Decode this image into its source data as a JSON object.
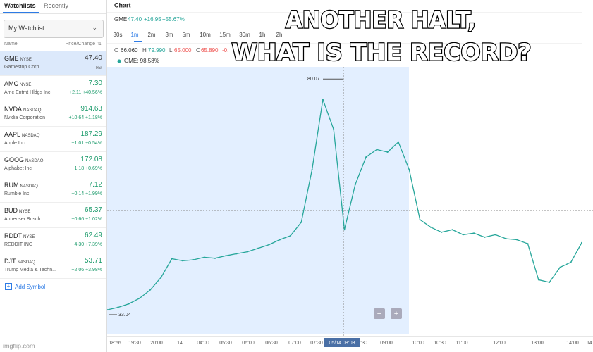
{
  "watchlist": {
    "tabs": [
      "Watchlists",
      "Recently"
    ],
    "dropdown": "My Watchlist",
    "columns": [
      "Name",
      "Price/Change"
    ],
    "rows": [
      {
        "symbol": "GME",
        "exchange": "NYSE",
        "company": "Gamestop Corp",
        "price": "47.40",
        "change": "Halt"
      },
      {
        "symbol": "AMC",
        "exchange": "NYSE",
        "company": "Amc Entmt Hldgs Inc",
        "price": "7.30",
        "change": "+2.11 +40.56%"
      },
      {
        "symbol": "NVDA",
        "exchange": "NASDAQ",
        "company": "Nvidia Corporation",
        "price": "914.63",
        "change": "+10.64 +1.18%"
      },
      {
        "symbol": "AAPL",
        "exchange": "NASDAQ",
        "company": "Apple Inc",
        "price": "187.29",
        "change": "+1.01 +0.54%"
      },
      {
        "symbol": "GOOG",
        "exchange": "NASDAQ",
        "company": "Alphabet Inc",
        "price": "172.08",
        "change": "+1.18 +0.69%"
      },
      {
        "symbol": "RUM",
        "exchange": "NASDAQ",
        "company": "Rumble Inc",
        "price": "7.12",
        "change": "+0.14 +1.99%"
      },
      {
        "symbol": "BUD",
        "exchange": "NYSE",
        "company": "Anheuser Busch",
        "price": "65.37",
        "change": "+0.66 +1.02%"
      },
      {
        "symbol": "RDDT",
        "exchange": "NYSE",
        "company": "REDDIT INC",
        "price": "62.49",
        "change": "+4.30 +7.39%"
      },
      {
        "symbol": "DJT",
        "exchange": "NASDAQ",
        "company": "Trump Media & Techn...",
        "price": "53.71",
        "change": "+2.06 +3.98%"
      }
    ],
    "add_symbol": "Add Symbol"
  },
  "chart_panel": {
    "title": "Chart",
    "quote": [
      "GME",
      "47.40",
      "+16.95",
      "+55.67%"
    ],
    "timeframes": [
      "30s",
      "1m",
      "2m",
      "3m",
      "5m",
      "10m",
      "15m",
      "30m",
      "1h",
      "2h"
    ],
    "ohlc": [
      "O",
      "66.060",
      "H",
      "79.990",
      "L",
      "65.000",
      "C",
      "65.890",
      "-0."
    ],
    "legend": "GME: 98.58%",
    "zoom": [
      "−",
      "+"
    ],
    "watermark": "imgflip.com"
  },
  "chart_data": {
    "type": "line",
    "color": "#26a69a",
    "values": [
      34.0,
      34.5,
      35.2,
      36.3,
      38.0,
      40.5,
      44.2,
      43.8,
      44.0,
      44.5,
      44.3,
      44.8,
      45.2,
      45.6,
      46.3,
      47.0,
      48.0,
      48.8,
      51.5,
      62.0,
      76.0,
      70.0,
      50.0,
      59.0,
      64.5,
      66.0,
      65.5,
      67.5,
      62.0,
      52.0,
      50.5,
      49.5,
      50.0,
      49.0,
      49.3,
      48.5,
      49.0,
      48.2,
      48.0,
      47.2,
      40.0,
      39.5,
      42.5,
      43.5,
      47.4
    ],
    "ylim": [
      29.8,
      82.5
    ],
    "max_label": {
      "value": 80.07,
      "label": "80.07"
    },
    "min_label": {
      "value": 33.04,
      "label": "33.04"
    },
    "x_labels": [
      "18:56",
      "19:30",
      "20:00",
      "14",
      "04:00",
      "05:30",
      "06:00",
      "06:30",
      "07:00",
      "07:30",
      "05/14 08:03",
      ":30",
      "09:00",
      "10:00",
      "10:30",
      "11:00",
      "12:00",
      "13:00",
      "14:00",
      "14"
    ]
  },
  "caption": [
    "ANOTHER HALT,",
    "WHAT IS THE RECORD?"
  ]
}
